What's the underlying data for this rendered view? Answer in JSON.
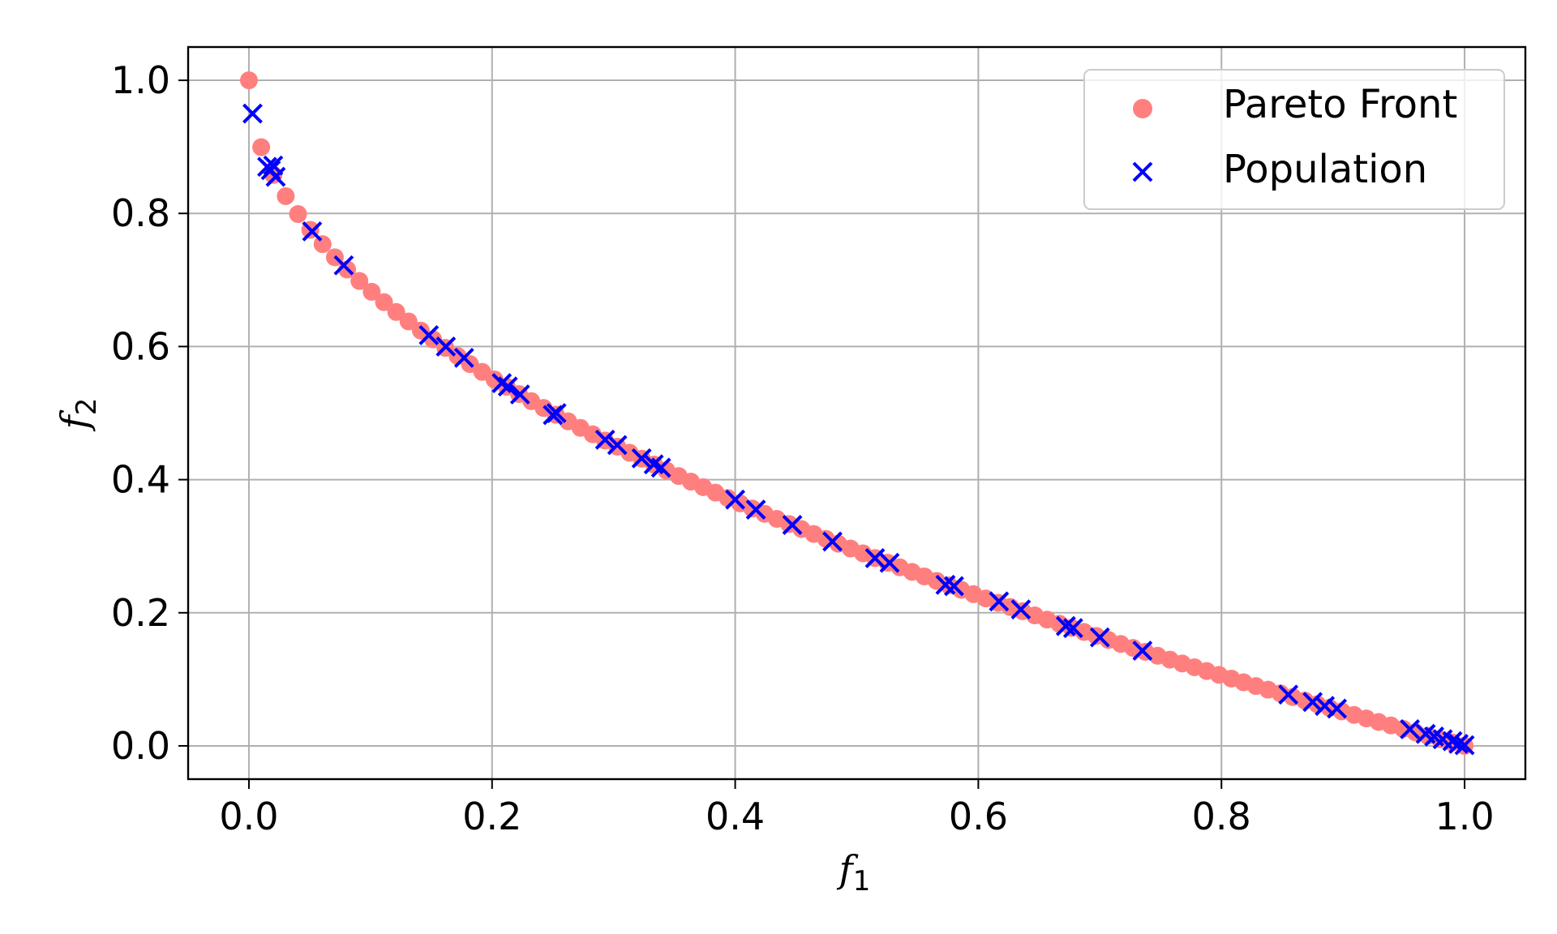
{
  "chart_data": {
    "type": "scatter",
    "title": "",
    "xlabel": {
      "main": "f",
      "sub": "1"
    },
    "ylabel": {
      "main": "f",
      "sub": "2"
    },
    "xlim": [
      -0.05,
      1.05
    ],
    "ylim": [
      -0.05,
      1.05
    ],
    "xticks": [
      0.0,
      0.2,
      0.4,
      0.6,
      0.8,
      1.0
    ],
    "yticks": [
      0.0,
      0.2,
      0.4,
      0.6,
      0.8,
      1.0
    ],
    "xtick_labels": [
      "0.0",
      "0.2",
      "0.4",
      "0.6",
      "0.8",
      "1.0"
    ],
    "ytick_labels": [
      "0.0",
      "0.2",
      "0.4",
      "0.6",
      "0.8",
      "1.0"
    ],
    "grid": true,
    "legend_position": "top-right",
    "series": [
      {
        "name": "Pareto Front",
        "marker": "circle",
        "color": "#ff7f7f",
        "x": [
          0.0,
          0.0101,
          0.0202,
          0.0303,
          0.0404,
          0.0505,
          0.0606,
          0.0707,
          0.0808,
          0.0909,
          0.101,
          0.1111,
          0.1212,
          0.1313,
          0.1414,
          0.1515,
          0.1616,
          0.1717,
          0.1818,
          0.1919,
          0.202,
          0.2121,
          0.2222,
          0.2323,
          0.2424,
          0.2525,
          0.2626,
          0.2727,
          0.2828,
          0.2929,
          0.303,
          0.3131,
          0.3232,
          0.3333,
          0.3434,
          0.3535,
          0.3636,
          0.3737,
          0.3838,
          0.3939,
          0.404,
          0.4141,
          0.4242,
          0.4343,
          0.4444,
          0.4545,
          0.4646,
          0.4747,
          0.4848,
          0.4949,
          0.5051,
          0.5152,
          0.5253,
          0.5354,
          0.5455,
          0.5556,
          0.5657,
          0.5758,
          0.5859,
          0.596,
          0.6061,
          0.6162,
          0.6263,
          0.6364,
          0.6465,
          0.6566,
          0.6667,
          0.6768,
          0.6869,
          0.697,
          0.7071,
          0.7172,
          0.7273,
          0.7374,
          0.7475,
          0.7576,
          0.7677,
          0.7778,
          0.7879,
          0.798,
          0.8081,
          0.8182,
          0.8283,
          0.8384,
          0.8485,
          0.8586,
          0.8687,
          0.8788,
          0.8889,
          0.899,
          0.9091,
          0.9192,
          0.9293,
          0.9394,
          0.9495,
          0.9596,
          0.9697,
          0.9798,
          0.9899,
          1.0
        ],
        "y": [
          1.0,
          0.8995,
          0.8579,
          0.8259,
          0.799,
          0.7753,
          0.7538,
          0.7341,
          0.7157,
          0.6985,
          0.6822,
          0.6667,
          0.6519,
          0.6377,
          0.624,
          0.6108,
          0.598,
          0.5857,
          0.5736,
          0.5619,
          0.5505,
          0.5395,
          0.5286,
          0.518,
          0.5077,
          0.4975,
          0.4876,
          0.4778,
          0.4682,
          0.4588,
          0.4495,
          0.4404,
          0.4315,
          0.4226,
          0.4139,
          0.4054,
          0.397,
          0.3887,
          0.3805,
          0.3724,
          0.3644,
          0.3565,
          0.3487,
          0.341,
          0.3333,
          0.3258,
          0.3184,
          0.311,
          0.3037,
          0.2965,
          0.2893,
          0.2822,
          0.2752,
          0.2683,
          0.2614,
          0.2546,
          0.2479,
          0.2412,
          0.2345,
          0.228,
          0.2215,
          0.215,
          0.2086,
          0.2023,
          0.196,
          0.1897,
          0.1835,
          0.1773,
          0.1712,
          0.1652,
          0.1591,
          0.1531,
          0.1472,
          0.1413,
          0.1354,
          0.1296,
          0.1238,
          0.1181,
          0.1124,
          0.1067,
          0.1011,
          0.0955,
          0.0899,
          0.0844,
          0.0789,
          0.0734,
          0.068,
          0.0626,
          0.0572,
          0.0518,
          0.0465,
          0.0412,
          0.0359,
          0.0307,
          0.0255,
          0.0203,
          0.0152,
          0.0101,
          0.005,
          0.0
        ]
      },
      {
        "name": "Population",
        "marker": "x",
        "color": "#0000ff",
        "x": [
          0.003,
          0.015,
          0.018,
          0.02,
          0.022,
          0.052,
          0.078,
          0.148,
          0.162,
          0.177,
          0.208,
          0.213,
          0.223,
          0.25,
          0.253,
          0.293,
          0.303,
          0.323,
          0.333,
          0.339,
          0.4,
          0.417,
          0.447,
          0.48,
          0.515,
          0.527,
          0.573,
          0.58,
          0.617,
          0.635,
          0.672,
          0.678,
          0.7,
          0.735,
          0.855,
          0.875,
          0.885,
          0.895,
          0.955,
          0.968,
          0.975,
          0.982,
          0.99,
          0.995,
          1.0
        ],
        "y": [
          0.95,
          0.87,
          0.865,
          0.872,
          0.855,
          0.773,
          0.722,
          0.617,
          0.6,
          0.583,
          0.545,
          0.54,
          0.528,
          0.497,
          0.5,
          0.46,
          0.452,
          0.432,
          0.423,
          0.418,
          0.37,
          0.355,
          0.332,
          0.307,
          0.282,
          0.275,
          0.242,
          0.24,
          0.217,
          0.205,
          0.18,
          0.177,
          0.163,
          0.143,
          0.077,
          0.066,
          0.06,
          0.056,
          0.025,
          0.018,
          0.014,
          0.01,
          0.007,
          0.003,
          0.001
        ]
      }
    ]
  }
}
